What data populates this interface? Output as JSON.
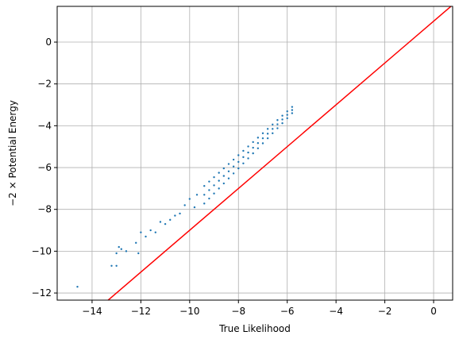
{
  "chart_data": {
    "type": "scatter",
    "xlabel": "True Likelihood",
    "ylabel": "−2 × Potential Energy",
    "xlim": [
      -15.43,
      0.78
    ],
    "ylim": [
      -12.34,
      1.71
    ],
    "xticks": [
      {
        "value": -14,
        "label": "−14"
      },
      {
        "value": -12,
        "label": "−12"
      },
      {
        "value": -10,
        "label": "−10"
      },
      {
        "value": -8,
        "label": "−8"
      },
      {
        "value": -6,
        "label": "−6"
      },
      {
        "value": -4,
        "label": "−4"
      },
      {
        "value": -2,
        "label": "−2"
      },
      0
    ],
    "yticks": [
      {
        "value": -12,
        "label": "−12"
      },
      {
        "value": -10,
        "label": "−10"
      },
      {
        "value": -8,
        "label": "−8"
      },
      {
        "value": -6,
        "label": "−6"
      },
      {
        "value": -4,
        "label": "−4"
      },
      {
        "value": -2,
        "label": "−2"
      },
      0
    ],
    "grid": true,
    "series": [
      {
        "type": "scatter",
        "color": "#1f77b4",
        "x": [
          -5.8,
          -6.0,
          -6.2,
          -6.4,
          -6.6,
          -6.8,
          -7.0,
          -7.2,
          -7.4,
          -7.6,
          -7.8,
          -8.0,
          -8.2,
          -8.4,
          -8.6,
          -8.8,
          -9.0,
          -9.2,
          -9.4,
          -5.8,
          -6.0,
          -6.2,
          -6.4,
          -6.6,
          -6.8,
          -7.0,
          -7.2,
          -7.4,
          -7.6,
          -7.8,
          -8.0,
          -8.2,
          -8.4,
          -8.6,
          -8.8,
          -9.0,
          -9.2,
          -9.4,
          -5.8,
          -6.0,
          -6.2,
          -6.4,
          -6.6,
          -6.8,
          -7.0,
          -7.2,
          -7.4,
          -7.6,
          -7.8,
          -8.0,
          -8.2,
          -8.4,
          -8.6,
          -8.8,
          -9.0,
          -9.2,
          -9.4,
          -9.7,
          -9.8,
          -10.0,
          -10.2,
          -10.4,
          -10.6,
          -10.8,
          -11.0,
          -11.2,
          -11.4,
          -11.6,
          -11.8,
          -12.0,
          -12.2,
          -12.1,
          -12.6,
          -12.8,
          -12.9,
          -13.0,
          -13.0,
          -13.2,
          -14.6
        ],
        "values": [
          -3.1,
          -3.31,
          -3.52,
          -3.73,
          -3.94,
          -4.15,
          -4.36,
          -4.57,
          -4.78,
          -4.99,
          -5.2,
          -5.41,
          -5.62,
          -5.83,
          -6.04,
          -6.25,
          -6.46,
          -6.67,
          -6.88,
          -3.25,
          -3.48,
          -3.7,
          -3.93,
          -4.15,
          -4.38,
          -4.6,
          -4.83,
          -5.05,
          -5.28,
          -5.5,
          -5.73,
          -5.95,
          -6.18,
          -6.4,
          -6.63,
          -6.85,
          -7.08,
          -7.3,
          -3.4,
          -3.64,
          -3.88,
          -4.12,
          -4.36,
          -4.6,
          -4.84,
          -5.08,
          -5.32,
          -5.56,
          -5.8,
          -6.04,
          -6.28,
          -6.52,
          -6.76,
          -7.0,
          -7.24,
          -7.48,
          -7.72,
          -7.3,
          -7.9,
          -7.5,
          -7.8,
          -8.2,
          -8.3,
          -8.5,
          -8.7,
          -8.6,
          -9.1,
          -9.0,
          -9.3,
          -9.1,
          -9.6,
          -10.1,
          -10.0,
          -9.9,
          -9.8,
          -10.1,
          -10.7,
          -10.7,
          -11.7
        ]
      },
      {
        "type": "line",
        "color": "#ff0000",
        "x": [
          -15.43,
          0.78
        ],
        "values": [
          -14.43,
          1.78
        ]
      }
    ]
  }
}
